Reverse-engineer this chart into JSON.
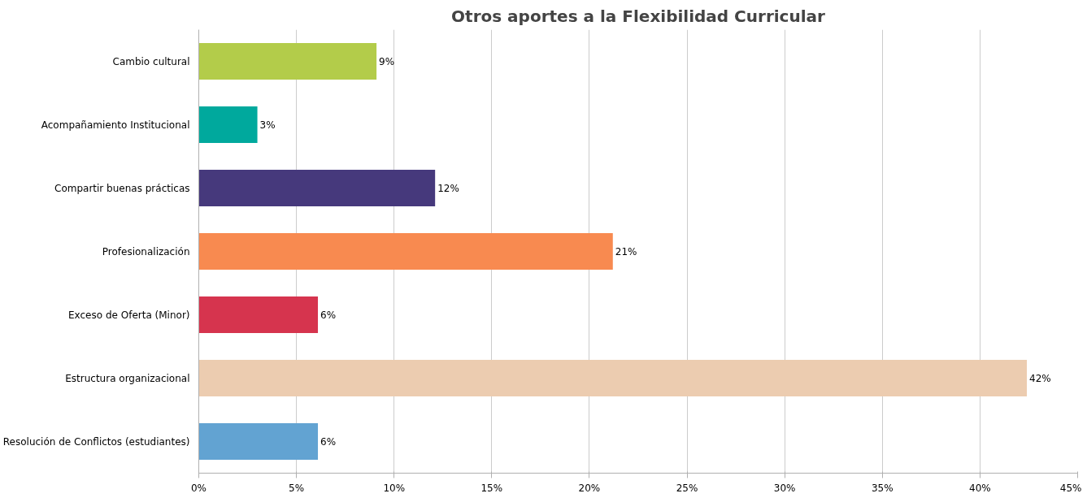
{
  "chart_data": {
    "type": "bar",
    "orientation": "horizontal",
    "title": "Otros aportes a la Flexibilidad Curricular",
    "categories": [
      "Cambio cultural",
      "Acompañamiento Institucional",
      "Compartir buenas prácticas",
      "Profesionalización",
      "Exceso de Oferta (Minor)",
      "Estructura organizacional",
      "Resolución de Conflictos (estudiantes)"
    ],
    "values": [
      9.1,
      3.0,
      12.1,
      21.2,
      6.1,
      42.4,
      6.1
    ],
    "colors": [
      "#b3cc4a",
      "#00a99d",
      "#46397c",
      "#f88a50",
      "#d6344e",
      "#ecccb0",
      "#62a3d2"
    ],
    "value_labels": [
      "9%",
      "3%",
      "12%",
      "21%",
      "6%",
      "42%",
      "6%"
    ],
    "xlim": [
      0,
      45
    ],
    "xticks": [
      {
        "value": 0,
        "label": "0%"
      },
      {
        "value": 5,
        "label": "5%"
      },
      {
        "value": 10,
        "label": "10%"
      },
      {
        "value": 15,
        "label": "15%"
      },
      {
        "value": 20,
        "label": "20%"
      },
      {
        "value": 25,
        "label": "25%"
      },
      {
        "value": 30,
        "label": "30%"
      },
      {
        "value": 35,
        "label": "35%"
      },
      {
        "value": 40,
        "label": "40%"
      },
      {
        "value": 45,
        "label": "45%"
      }
    ],
    "grid": "x"
  }
}
